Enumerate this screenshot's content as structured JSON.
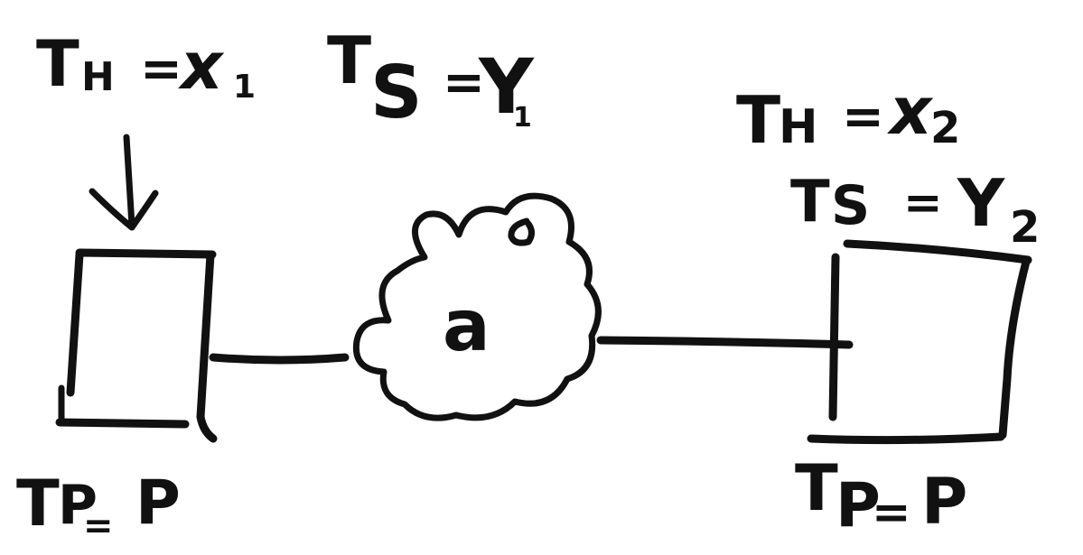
{
  "left_host": {
    "th_label": "TH = x1",
    "th_base": "T",
    "th_sub": "H",
    "th_eq": "=",
    "th_var": "x",
    "th_idx": "1",
    "tp_label": "TP= P",
    "tp_base": "T",
    "tp_sub": "P",
    "tp_eq": "=",
    "tp_val": "P"
  },
  "ts_top": {
    "label": "TS = Y1",
    "base": "T",
    "sub": "S",
    "eq": "=",
    "var": "Y",
    "idx": "1"
  },
  "cloud": {
    "label": "a"
  },
  "right_host": {
    "th_label": "TH = x2",
    "th_base": "T",
    "th_sub": "H",
    "th_eq": "=",
    "th_var": "x",
    "th_idx": "2",
    "ts_label": "TS = Y2",
    "ts_base": "T",
    "ts_sub": "S",
    "ts_eq": "=",
    "ts_var": "Y",
    "ts_idx": "2",
    "tp_label": "TP=P",
    "tp_base": "T",
    "tp_sub": "P",
    "tp_eq": "=",
    "tp_val": "P"
  },
  "colors": {
    "ink": "#111111",
    "background": "#ffffff"
  }
}
